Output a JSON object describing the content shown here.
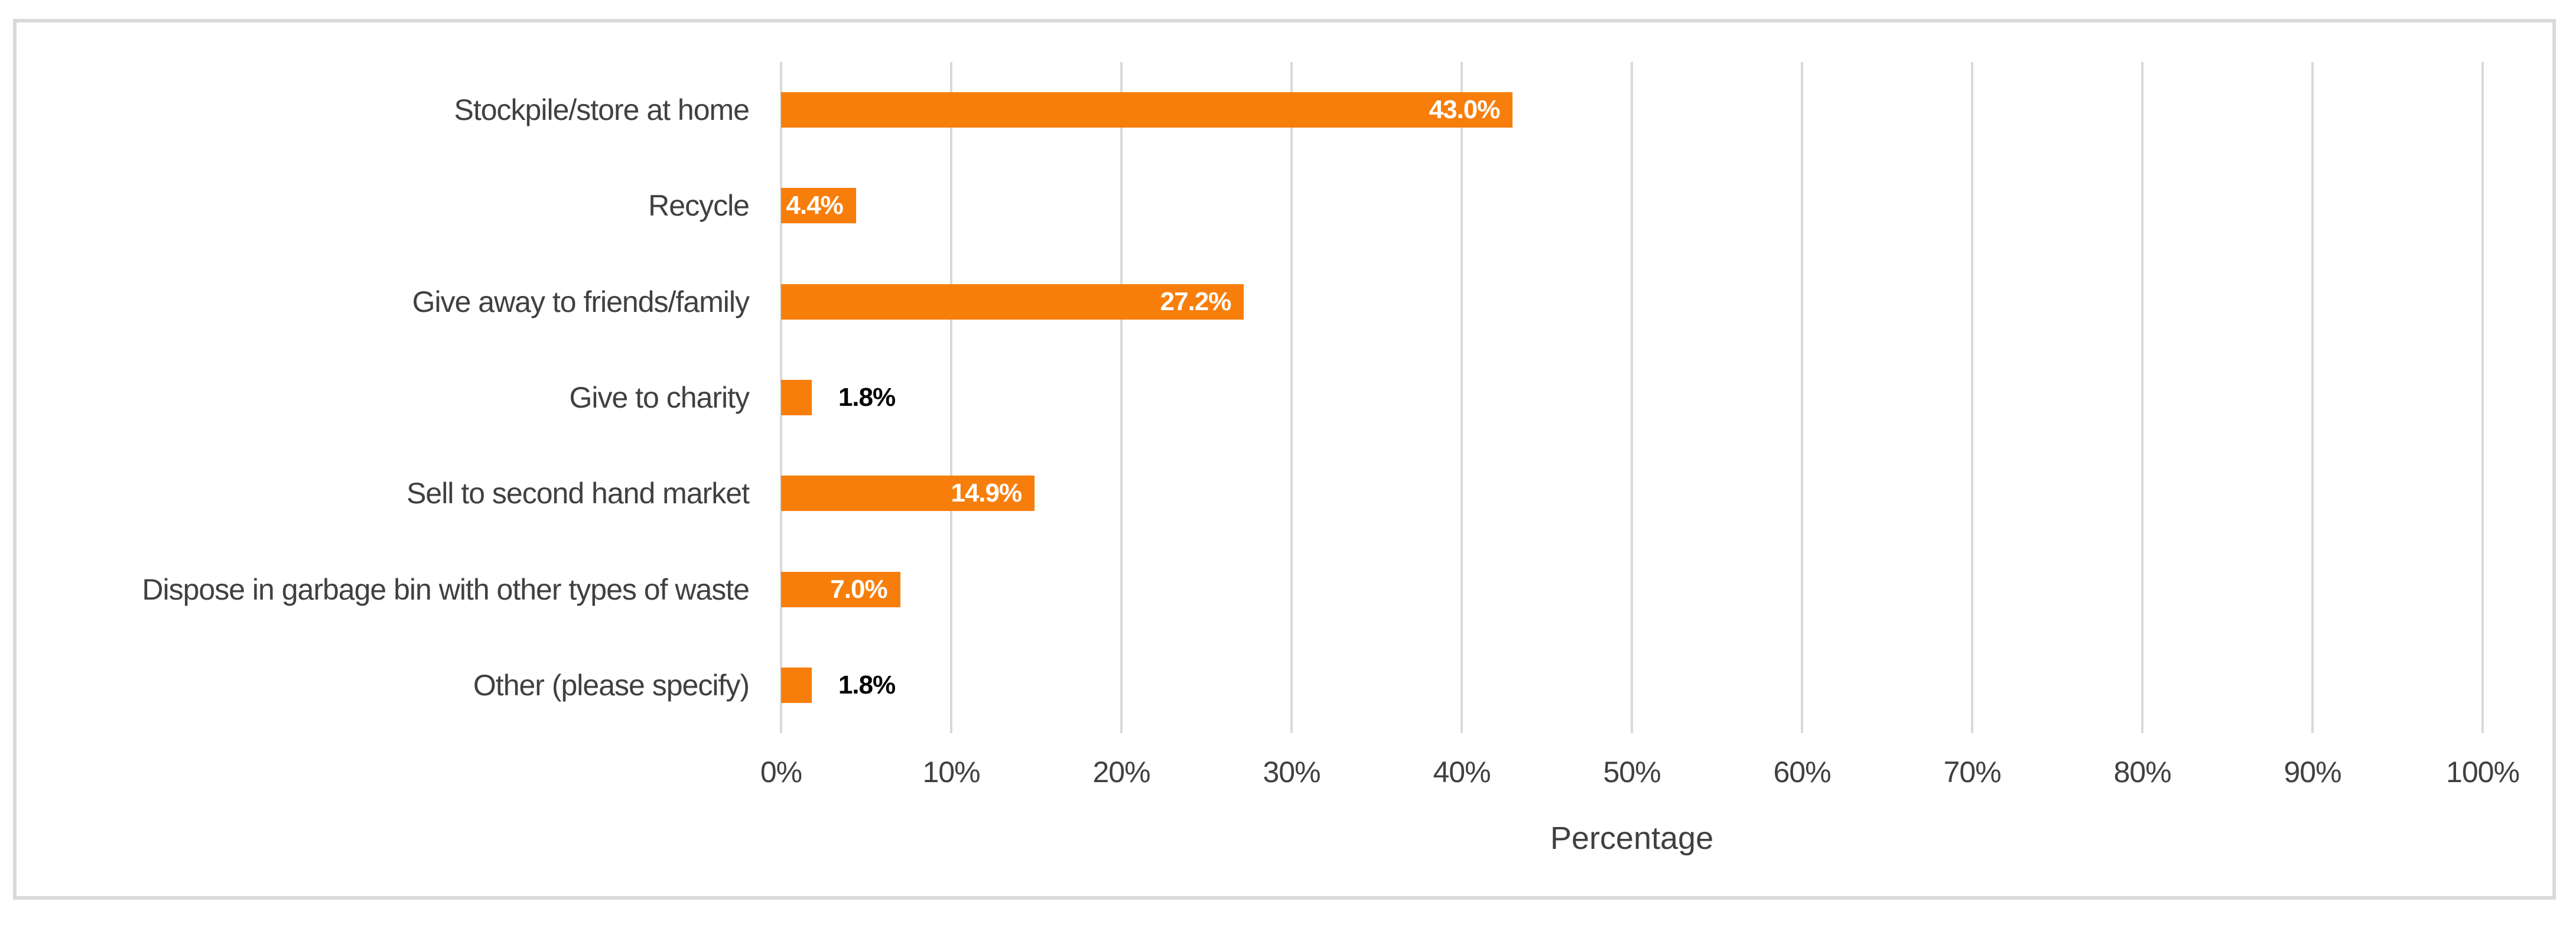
{
  "chart_data": {
    "type": "bar",
    "orientation": "horizontal",
    "title": "",
    "xlabel": "Percentage",
    "ylabel": "",
    "categories": [
      "Stockpile/store at home",
      "Recycle",
      "Give away to friends/family",
      "Give to charity",
      "Sell to second hand market",
      "Dispose in garbage bin with other types of waste",
      "Other (please specify)"
    ],
    "values": [
      43.0,
      4.4,
      27.2,
      1.8,
      14.9,
      7.0,
      1.8
    ],
    "value_labels": [
      "43.0%",
      "4.4%",
      "27.2%",
      "1.8%",
      "14.9%",
      "7.0%",
      "1.8%"
    ],
    "xlim": [
      0,
      100
    ],
    "tick_step": 10,
    "tick_labels": [
      "0%",
      "10%",
      "20%",
      "30%",
      "40%",
      "50%",
      "60%",
      "70%",
      "80%",
      "90%",
      "100%"
    ],
    "grid": true,
    "legend": false,
    "colors": {
      "bar": "#f77e0a",
      "gridline": "#d9d9d9",
      "frame_border": "#d9d9d9",
      "label_inside": "#ffffff",
      "label_outside": "#000000",
      "axis_text": "#404040"
    }
  }
}
